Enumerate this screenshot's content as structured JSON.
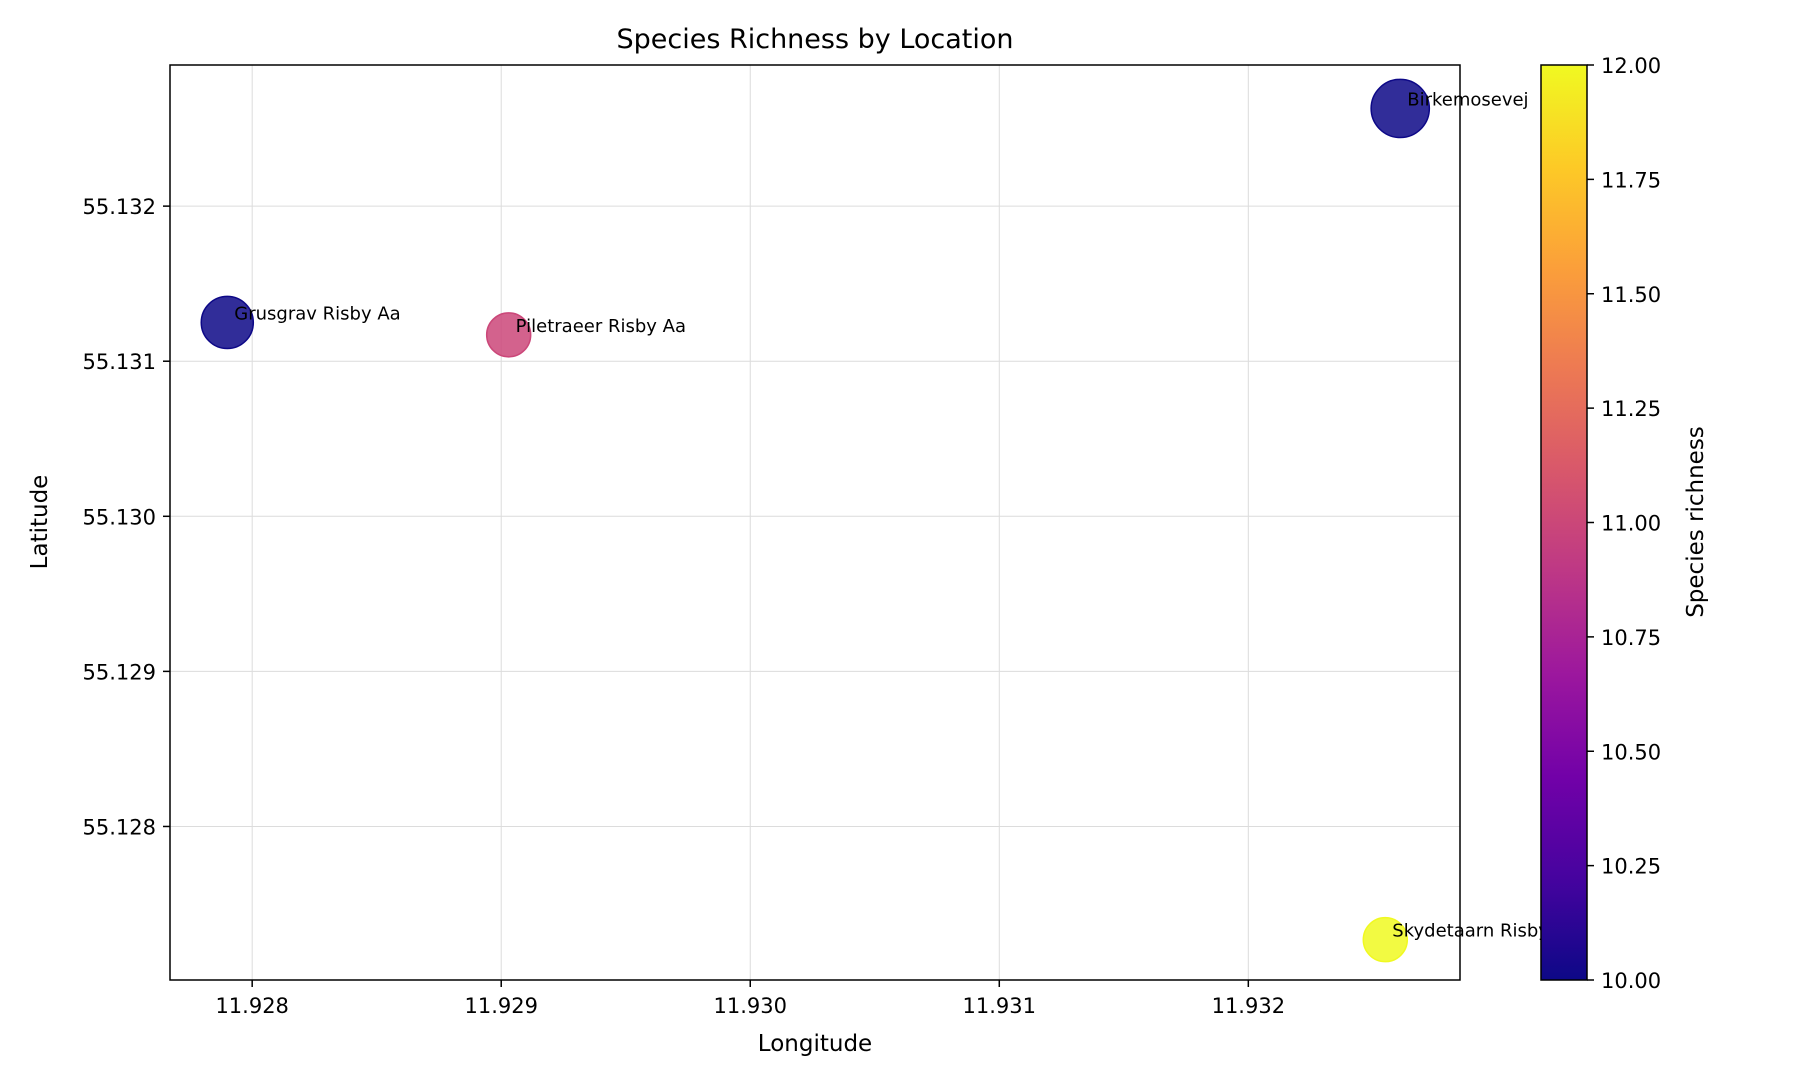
{
  "chart_data": {
    "type": "scatter",
    "title": "Species Richness by Location",
    "xlabel": "Longitude",
    "ylabel": "Latitude",
    "xlim": [
      11.92767,
      11.93285
    ],
    "ylim": [
      55.12701,
      55.13291
    ],
    "xticks": [
      11.928,
      11.929,
      11.93,
      11.931,
      11.932
    ],
    "xtick_labels": [
      "11.928",
      "11.929",
      "11.930",
      "11.931",
      "11.932"
    ],
    "yticks": [
      55.128,
      55.129,
      55.13,
      55.131,
      55.132
    ],
    "ytick_labels": [
      "55.128",
      "55.129",
      "55.130",
      "55.131",
      "55.132"
    ],
    "grid": true,
    "points": [
      {
        "label": "Grusgrav Risby Aa",
        "x": 11.9279,
        "y": 55.13125,
        "richness": 10
      },
      {
        "label": "Piletraeer Risby Aa",
        "x": 11.92903,
        "y": 55.13117,
        "richness": 11
      },
      {
        "label": "Birkemosevej",
        "x": 11.93261,
        "y": 55.13263,
        "richness": 10
      },
      {
        "label": "Skydetaarn Risby Aa",
        "x": 11.93255,
        "y": 55.12727,
        "richness": 12
      }
    ],
    "marker_sizes": [
      1.4,
      1.0,
      1.75,
      1.0
    ],
    "colorbar": {
      "label": "Species richness",
      "min": 10.0,
      "max": 12.0,
      "ticks": [
        10.0,
        10.25,
        10.5,
        10.75,
        11.0,
        11.25,
        11.5,
        11.75,
        12.0
      ],
      "tick_labels": [
        "10.00",
        "10.25",
        "10.50",
        "10.75",
        "11.00",
        "11.25",
        "11.50",
        "11.75",
        "12.00"
      ],
      "colormap": "plasma",
      "colormap_stops": [
        "#0d0887",
        "#46039f",
        "#7201a8",
        "#9c179e",
        "#bd3786",
        "#d8576b",
        "#ed7953",
        "#fb9f3a",
        "#fdca26",
        "#f0f921"
      ]
    }
  }
}
